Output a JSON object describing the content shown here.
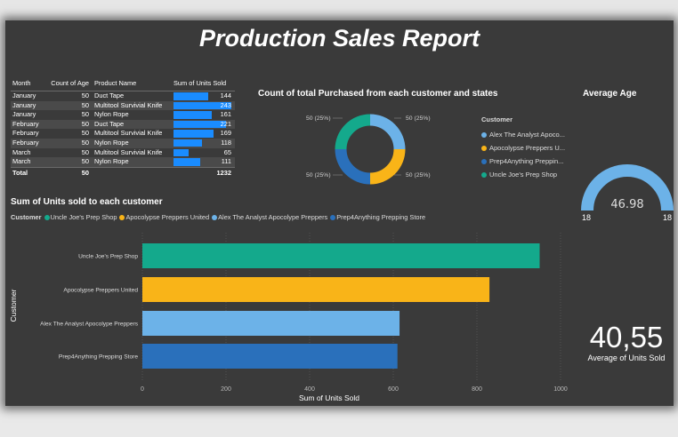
{
  "report": {
    "title": "Production Sales Report"
  },
  "table": {
    "headers": {
      "month": "Month",
      "age": "Count of Age",
      "product": "Product Name",
      "units": "Sum of Units Sold"
    },
    "rows": [
      {
        "month": "January",
        "age": "50",
        "product": "Duct Tape",
        "units": 144
      },
      {
        "month": "January",
        "age": "50",
        "product": "Multitool Survivial Knife",
        "units": 243
      },
      {
        "month": "January",
        "age": "50",
        "product": "Nylon Rope",
        "units": 161
      },
      {
        "month": "February",
        "age": "50",
        "product": "Duct Tape",
        "units": 221
      },
      {
        "month": "February",
        "age": "50",
        "product": "Multitool Survivial Knife",
        "units": 169
      },
      {
        "month": "February",
        "age": "50",
        "product": "Nylon Rope",
        "units": 118
      },
      {
        "month": "March",
        "age": "50",
        "product": "Multitool Survivial Knife",
        "units": 65
      },
      {
        "month": "March",
        "age": "50",
        "product": "Nylon Rope",
        "units": 111
      }
    ],
    "total": {
      "label": "Total",
      "age": "50",
      "units": "1232"
    }
  },
  "donut": {
    "title": "Count of total Purchased from each customer and states",
    "legend_title": "Customer",
    "legend": [
      {
        "label": "Alex The Analyst Apoco...",
        "color": "#6cb2e8"
      },
      {
        "label": "Apocolypse Preppers U...",
        "color": "#f9b418"
      },
      {
        "label": "Prep4Anything Preppin...",
        "color": "#2a70bb"
      },
      {
        "label": "Uncle Joe's Prep Shop",
        "color": "#14a98c"
      }
    ],
    "slice_labels": {
      "tr": "50 (25%)",
      "br": "50 (25%)",
      "bl": "50 (25%)",
      "tl": "50 (25%)"
    }
  },
  "gauge": {
    "title": "Average Age",
    "value": "46.98",
    "value_num": 46.98,
    "min_label": "18",
    "max_label": "18"
  },
  "chart_data": {
    "type": "bar",
    "title": "Sum of Units sold to each customer",
    "legend_title": "Customer",
    "categories": [
      "Uncle Joe's Prep Shop",
      "Apocolypse Preppers United",
      "Alex The Analyst Apocolype Preppers",
      "Prep4Anything Prepping Store"
    ],
    "legend_order": [
      "Uncle Joe's Prep Shop",
      "Apocolypse Preppers United",
      "Alex The Analyst Apocolype Preppers",
      "Prep4Anything Prepping Store"
    ],
    "values": [
      950,
      830,
      615,
      610
    ],
    "colors": [
      "#14a98c",
      "#f9b418",
      "#6cb2e8",
      "#2a70bb"
    ],
    "xlabel": "Sum of Units Sold",
    "ylabel": "Customer",
    "xlim": [
      0,
      1000
    ],
    "xticks": [
      "0",
      "200",
      "400",
      "600",
      "800",
      "1000"
    ],
    "grid": true
  },
  "kpi": {
    "value": "40,55",
    "label": "Average of Units Sold"
  }
}
